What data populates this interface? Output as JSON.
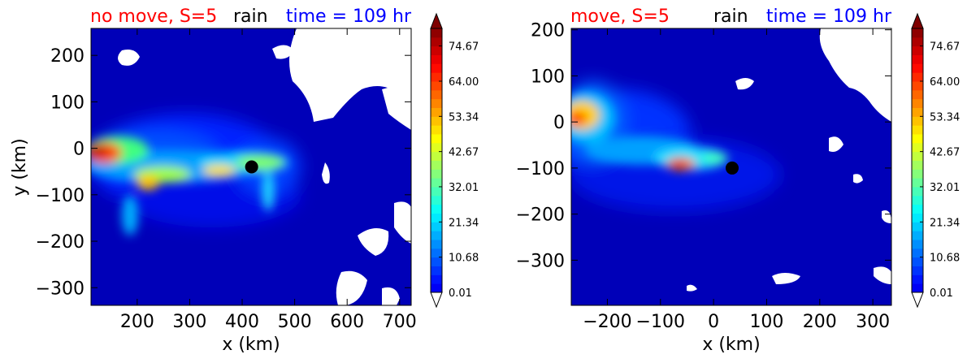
{
  "colors": {
    "move_label": "#ff0000",
    "var_label": "#000000",
    "time_label": "#0000ff"
  },
  "chart_data": [
    {
      "type": "heatmap",
      "title_left": "no move, S=5",
      "title_mid": "rain",
      "title_right": "time = 109 hr",
      "xlabel": "x (km)",
      "ylabel": "y (km)",
      "xlim": [
        112,
        722
      ],
      "ylim": [
        -338,
        258
      ],
      "xticks": [
        200,
        300,
        400,
        500,
        600,
        700
      ],
      "xtick_labels": [
        "200",
        "300",
        "400",
        "500",
        "600",
        "700"
      ],
      "yticks": [
        200,
        100,
        0,
        -100,
        -200,
        -300
      ],
      "ytick_labels": [
        "200",
        "100",
        "0",
        "−100",
        "−200",
        "−300"
      ],
      "center_marker": {
        "x": 418,
        "y": -40
      },
      "colorbar": {
        "ticks": [
          0.01,
          10.68,
          21.34,
          32.01,
          42.67,
          53.34,
          64.0,
          74.67
        ],
        "tick_labels": [
          "0.01",
          "10.68",
          "21.34",
          "32.01",
          "42.67",
          "53.34",
          "64.00",
          "74.67"
        ],
        "extend": "both",
        "colormap": "jet"
      }
    },
    {
      "type": "heatmap",
      "title_left": "move, S=5",
      "title_mid": "rain",
      "title_right": "time = 109 hr",
      "xlabel": "x (km)",
      "ylabel": "",
      "xlim": [
        -268,
        335
      ],
      "ylim": [
        -398,
        203
      ],
      "xticks": [
        -200,
        -100,
        0,
        100,
        200,
        300
      ],
      "xtick_labels": [
        "−200",
        "−100",
        "0",
        "100",
        "200",
        "300"
      ],
      "yticks": [
        200,
        100,
        0,
        -100,
        -200,
        -300
      ],
      "ytick_labels": [
        "200",
        "100",
        "0",
        "−100",
        "−200",
        "−300"
      ],
      "center_marker": {
        "x": 35,
        "y": -100
      },
      "colorbar": {
        "ticks": [
          0.01,
          10.68,
          21.34,
          32.01,
          42.67,
          53.34,
          64.0,
          74.67
        ],
        "tick_labels": [
          "0.01",
          "10.68",
          "21.34",
          "32.01",
          "42.67",
          "53.34",
          "64.00",
          "74.67"
        ],
        "extend": "both",
        "colormap": "jet"
      }
    }
  ]
}
